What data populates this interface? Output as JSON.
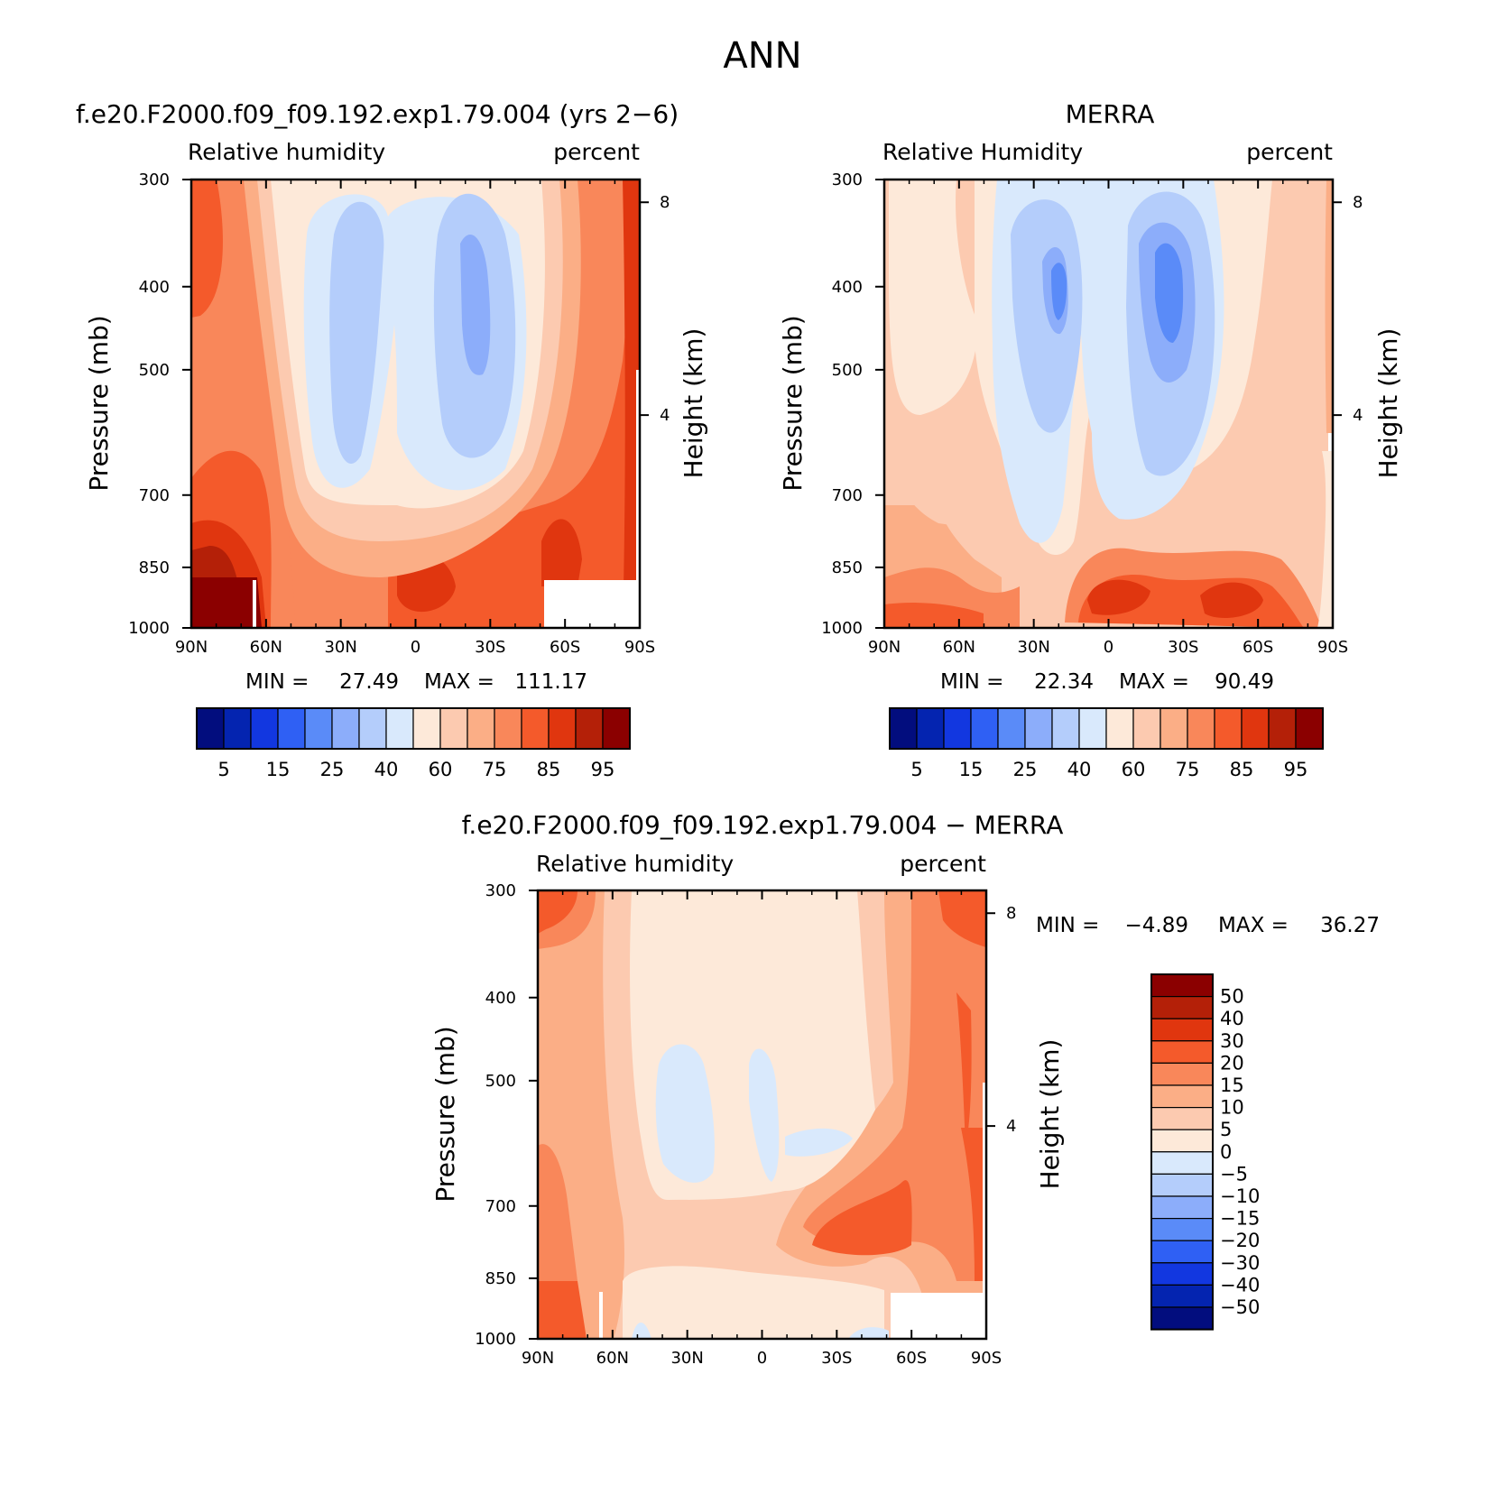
{
  "figure": {
    "title": "ANN",
    "colors": {
      "positive_ramp": [
        "#FDE9D9",
        "#FCCAB0",
        "#FBAE86",
        "#F9875A",
        "#F45A2B",
        "#E0360F",
        "#B42008",
        "#8B0000"
      ],
      "negative_ramp": [
        "#D9E9FC",
        "#B4CDFB",
        "#8CADFA",
        "#5A8BF8",
        "#2F60F4",
        "#1237E0",
        "#0424B0",
        "#020D7E"
      ]
    }
  },
  "chart_data": [
    {
      "type": "heatmap",
      "title": "f.e20.F2000.f09_f09.192.exp1.79.004 (yrs 2−6)",
      "variable": "Relative humidity",
      "units": "percent",
      "xlabel": "",
      "ylabel": "Pressure (mb)",
      "y2label": "Height (km)",
      "x_ticks": [
        "90N",
        "60N",
        "30N",
        "0",
        "30S",
        "60S",
        "90S"
      ],
      "x_range": [
        90,
        -90
      ],
      "y_ticks": [
        300,
        400,
        500,
        700,
        850,
        1000
      ],
      "y_range": [
        300,
        1000
      ],
      "y2_ticks": [
        8,
        4
      ],
      "min_label": "MIN =",
      "min": "27.49",
      "max_label": "MAX =",
      "max": "111.17",
      "colorbar_levels": [
        "5",
        "15",
        "25",
        "40",
        "60",
        "75",
        "85",
        "95"
      ],
      "colorbar_orientation": "horizontal"
    },
    {
      "type": "heatmap",
      "title": "MERRA",
      "variable": "Relative Humidity",
      "units": "percent",
      "xlabel": "",
      "ylabel": "Pressure (mb)",
      "y2label": "Height (km)",
      "x_ticks": [
        "90N",
        "60N",
        "30N",
        "0",
        "30S",
        "60S",
        "90S"
      ],
      "x_range": [
        90,
        -90
      ],
      "y_ticks": [
        300,
        400,
        500,
        700,
        850,
        1000
      ],
      "y_range": [
        300,
        1000
      ],
      "y2_ticks": [
        8,
        4
      ],
      "min_label": "MIN =",
      "min": "22.34",
      "max_label": "MAX =",
      "max": "90.49",
      "colorbar_levels": [
        "5",
        "15",
        "25",
        "40",
        "60",
        "75",
        "85",
        "95"
      ],
      "colorbar_orientation": "horizontal"
    },
    {
      "type": "heatmap",
      "title": "f.e20.F2000.f09_f09.192.exp1.79.004 − MERRA",
      "variable": "Relative humidity",
      "units": "percent",
      "xlabel": "",
      "ylabel": "Pressure (mb)",
      "y2label": "Height (km)",
      "x_ticks": [
        "90N",
        "60N",
        "30N",
        "0",
        "30S",
        "60S",
        "90S"
      ],
      "x_range": [
        90,
        -90
      ],
      "y_ticks": [
        300,
        400,
        500,
        700,
        850,
        1000
      ],
      "y_range": [
        300,
        1000
      ],
      "y2_ticks": [
        8,
        4
      ],
      "min_label": "MIN =",
      "min": "−4.89",
      "max_label": "MAX =",
      "max": "36.27",
      "colorbar_levels": [
        "50",
        "40",
        "30",
        "20",
        "15",
        "10",
        "5",
        "0",
        "−5",
        "−10",
        "−15",
        "−20",
        "−30",
        "−40",
        "−50"
      ],
      "colorbar_orientation": "vertical"
    }
  ]
}
